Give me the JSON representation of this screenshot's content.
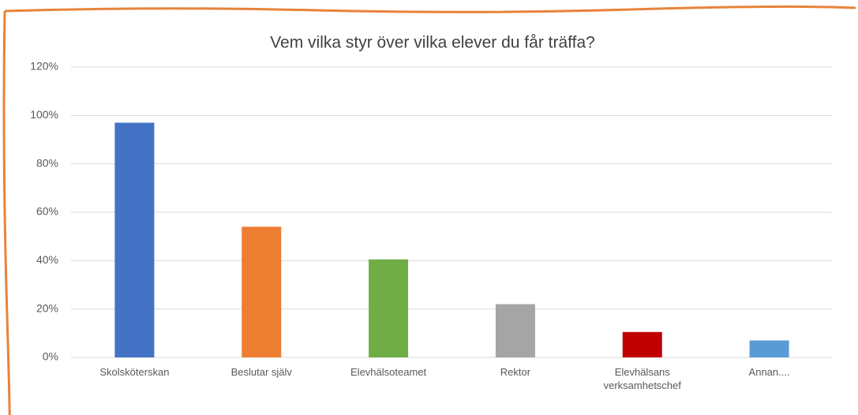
{
  "chart_data": {
    "type": "bar",
    "title": "Vem vilka styr över vilka elever du får träffa?",
    "categories": [
      "Skolsköterskan",
      "Beslutar själv",
      "Elevhälsoteamet",
      "Rektor",
      "Elevhälsans verksamhetschef",
      "Annan...."
    ],
    "values": [
      97,
      54,
      40.5,
      22,
      10.5,
      7
    ],
    "colors": [
      "#4472c4",
      "#ed7d31",
      "#70ad47",
      "#a5a5a5",
      "#c00000",
      "#5b9bd5"
    ],
    "ylim": [
      0,
      120
    ],
    "yticks": [
      {
        "value": 0,
        "label": "0%"
      },
      {
        "value": 20,
        "label": "20%"
      },
      {
        "value": 40,
        "label": "40%"
      },
      {
        "value": 60,
        "label": "60%"
      },
      {
        "value": 80,
        "label": "80%"
      },
      {
        "value": 100,
        "label": "100%"
      },
      {
        "value": 120,
        "label": "120%"
      }
    ],
    "grid": true
  }
}
